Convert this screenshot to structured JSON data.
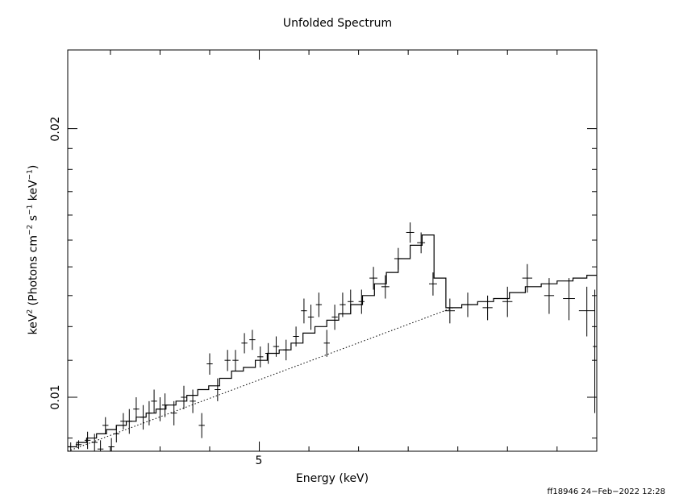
{
  "chart_data": {
    "type": "scatter",
    "title": "Unfolded Spectrum",
    "xlabel": "Energy (keV)",
    "ylabel": {
      "base": "keV",
      "sup1": "2",
      "mid1": " (Photons cm",
      "sup2": "−2",
      "mid2": " s",
      "sup3": "−1",
      "mid3": " keV",
      "sup4": "−1",
      "end": ")"
    },
    "xlim": [
      3.07,
      8.4
    ],
    "ylim": [
      0.0087,
      0.0245
    ],
    "ylog": true,
    "x_tick_labels": [
      {
        "value": 5,
        "label": "5"
      }
    ],
    "y_tick_labels": [
      {
        "value": 0.01,
        "label": "0.01"
      },
      {
        "value": 0.02,
        "label": "0.02"
      }
    ],
    "data_points": [
      [
        3.1,
        0.0088,
        0.015,
        0.0001
      ],
      [
        3.18,
        0.00885,
        0.03,
        0.0001
      ],
      [
        3.27,
        0.00895,
        0.03,
        0.0002
      ],
      [
        3.34,
        0.0089,
        0.03,
        0.0002
      ],
      [
        3.4,
        0.00875,
        0.03,
        0.0002
      ],
      [
        3.45,
        0.0093,
        0.03,
        0.0002
      ],
      [
        3.51,
        0.0088,
        0.03,
        0.0002
      ],
      [
        3.56,
        0.0091,
        0.03,
        0.0002
      ],
      [
        3.63,
        0.0094,
        0.03,
        0.0002
      ],
      [
        3.69,
        0.0094,
        0.03,
        0.0003
      ],
      [
        3.76,
        0.0097,
        0.03,
        0.0003
      ],
      [
        3.83,
        0.0095,
        0.03,
        0.0003
      ],
      [
        3.89,
        0.0096,
        0.03,
        0.0003
      ],
      [
        3.94,
        0.0099,
        0.03,
        0.0003
      ],
      [
        4.0,
        0.0097,
        0.03,
        0.0003
      ],
      [
        4.05,
        0.0098,
        0.03,
        0.0003
      ],
      [
        4.14,
        0.0096,
        0.03,
        0.0003
      ],
      [
        4.24,
        0.01,
        0.03,
        0.0003
      ],
      [
        4.33,
        0.0099,
        0.03,
        0.0003
      ],
      [
        4.42,
        0.0093,
        0.03,
        0.0003
      ],
      [
        4.5,
        0.0109,
        0.03,
        0.0003
      ],
      [
        4.58,
        0.0102,
        0.03,
        0.0003
      ],
      [
        4.68,
        0.011,
        0.03,
        0.0003
      ],
      [
        4.76,
        0.011,
        0.03,
        0.0003
      ],
      [
        4.85,
        0.0115,
        0.03,
        0.0003
      ],
      [
        4.93,
        0.0116,
        0.03,
        0.0003
      ],
      [
        5.01,
        0.0111,
        0.03,
        0.0003
      ],
      [
        5.09,
        0.0112,
        0.03,
        0.0003
      ],
      [
        5.17,
        0.0114,
        0.03,
        0.0003
      ],
      [
        5.27,
        0.0113,
        0.03,
        0.0003
      ],
      [
        5.37,
        0.0117,
        0.03,
        0.0003
      ],
      [
        5.45,
        0.0125,
        0.03,
        0.0004
      ],
      [
        5.52,
        0.0123,
        0.03,
        0.0004
      ],
      [
        5.6,
        0.0127,
        0.03,
        0.0004
      ],
      [
        5.68,
        0.0115,
        0.03,
        0.0004
      ],
      [
        5.76,
        0.0123,
        0.03,
        0.0004
      ],
      [
        5.84,
        0.0127,
        0.03,
        0.0004
      ],
      [
        5.92,
        0.0128,
        0.03,
        0.0004
      ],
      [
        6.03,
        0.0128,
        0.03,
        0.0004
      ],
      [
        6.15,
        0.0136,
        0.04,
        0.0004
      ],
      [
        6.27,
        0.0133,
        0.04,
        0.0004
      ],
      [
        6.4,
        0.0143,
        0.04,
        0.0004
      ],
      [
        6.52,
        0.0153,
        0.04,
        0.0004
      ],
      [
        6.63,
        0.0149,
        0.04,
        0.0004
      ],
      [
        6.75,
        0.0134,
        0.04,
        0.0004
      ],
      [
        6.92,
        0.0125,
        0.05,
        0.0004
      ],
      [
        7.1,
        0.0127,
        0.05,
        0.0004
      ],
      [
        7.3,
        0.0126,
        0.05,
        0.0004
      ],
      [
        7.5,
        0.0128,
        0.05,
        0.0005
      ],
      [
        7.7,
        0.0136,
        0.05,
        0.0005
      ],
      [
        7.92,
        0.013,
        0.05,
        0.0006
      ],
      [
        8.12,
        0.0129,
        0.06,
        0.0007
      ],
      [
        8.3,
        0.0125,
        0.08,
        0.0008
      ],
      [
        8.38,
        0.0114,
        0.02,
        0.0018
      ]
    ],
    "model_step": [
      [
        3.07,
        0.0088
      ],
      [
        3.16,
        0.0089
      ],
      [
        3.26,
        0.009
      ],
      [
        3.36,
        0.0091
      ],
      [
        3.46,
        0.0092
      ],
      [
        3.56,
        0.0093
      ],
      [
        3.66,
        0.0094
      ],
      [
        3.76,
        0.0095
      ],
      [
        3.86,
        0.0096
      ],
      [
        3.96,
        0.0097
      ],
      [
        4.06,
        0.0098
      ],
      [
        4.16,
        0.0099
      ],
      [
        4.27,
        0.01005
      ],
      [
        4.38,
        0.0102
      ],
      [
        4.49,
        0.0103
      ],
      [
        4.6,
        0.0105
      ],
      [
        4.72,
        0.0107
      ],
      [
        4.84,
        0.0108
      ],
      [
        4.96,
        0.011
      ],
      [
        5.08,
        0.0112
      ],
      [
        5.2,
        0.0113
      ],
      [
        5.32,
        0.0115
      ],
      [
        5.44,
        0.0118
      ],
      [
        5.56,
        0.012
      ],
      [
        5.68,
        0.0122
      ],
      [
        5.8,
        0.0124
      ],
      [
        5.92,
        0.0127
      ],
      [
        6.04,
        0.013
      ],
      [
        6.16,
        0.0134
      ],
      [
        6.28,
        0.0138
      ],
      [
        6.4,
        0.0143
      ],
      [
        6.52,
        0.0148
      ],
      [
        6.64,
        0.0152
      ],
      [
        6.76,
        0.0136
      ],
      [
        6.88,
        0.0126
      ],
      [
        7.04,
        0.0127
      ],
      [
        7.2,
        0.0128
      ],
      [
        7.36,
        0.0129
      ],
      [
        7.52,
        0.0131
      ],
      [
        7.68,
        0.0133
      ],
      [
        7.84,
        0.0134
      ],
      [
        8.0,
        0.0135
      ],
      [
        8.16,
        0.0136
      ],
      [
        8.3,
        0.0137
      ],
      [
        8.4,
        0.0137
      ]
    ],
    "continuum": [
      [
        3.07,
        0.0087
      ],
      [
        6.95,
        0.0126
      ]
    ]
  },
  "footer": "ff18946 24−Feb−2022 12:28"
}
